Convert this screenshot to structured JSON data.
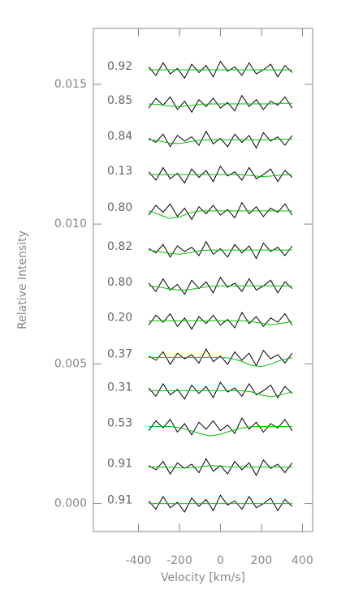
{
  "chart_data": {
    "type": "line",
    "xlabel": "Velocity [km/s]",
    "ylabel": "Relative Intensity",
    "xlim": [
      -620,
      450
    ],
    "ylim": [
      -0.001,
      0.017
    ],
    "xticks": [
      -400,
      -200,
      0,
      200,
      400
    ],
    "yticks": [
      {
        "value": 0,
        "label": "0.000"
      },
      {
        "value": 0.005,
        "label": "0.005"
      },
      {
        "value": 0.01,
        "label": "0.010"
      },
      {
        "value": 0.015,
        "label": "0.015"
      }
    ],
    "line_color": "#000000",
    "model_color": "#00c000",
    "x": [
      -350,
      -315,
      -280,
      -245,
      -210,
      -175,
      -140,
      -105,
      -70,
      -35,
      0,
      35,
      70,
      105,
      140,
      175,
      210,
      245,
      280,
      315,
      350
    ],
    "model_x": [
      -350,
      -300,
      -250,
      -200,
      -150,
      -100,
      -50,
      0,
      50,
      100,
      150,
      200,
      250,
      300,
      350
    ],
    "series": [
      {
        "label": "0.92",
        "values": [
          0.01562,
          0.01532,
          0.01577,
          0.01537,
          0.01557,
          0.01522,
          0.01572,
          0.01542,
          0.01567,
          0.01527,
          0.01582,
          0.01547,
          0.01562,
          0.01532,
          0.01577,
          0.01537,
          0.01552,
          0.01572,
          0.01527,
          0.01567,
          0.01542
        ],
        "model": [
          0.01552,
          0.01552,
          0.01552,
          0.01552,
          0.01552,
          0.01552,
          0.01552,
          0.01552,
          0.01552,
          0.01552,
          0.01552,
          0.01552,
          0.01552,
          0.01552,
          0.01552
        ]
      },
      {
        "label": "0.85",
        "values": [
          0.01415,
          0.0145,
          0.01425,
          0.01455,
          0.0141,
          0.0144,
          0.014,
          0.01445,
          0.0142,
          0.0145,
          0.01415,
          0.01435,
          0.01405,
          0.0146,
          0.0142,
          0.01445,
          0.0141,
          0.0144,
          0.01425,
          0.01455,
          0.01415
        ],
        "model": [
          0.0143,
          0.01428,
          0.01422,
          0.0142,
          0.01424,
          0.01428,
          0.0143,
          0.0143,
          0.0143,
          0.0143,
          0.0143,
          0.0143,
          0.0143,
          0.01432,
          0.01432
        ]
      },
      {
        "label": "0.84",
        "values": [
          0.01307,
          0.01292,
          0.01322,
          0.01277,
          0.01317,
          0.01297,
          0.01312,
          0.01282,
          0.01332,
          0.01287,
          0.01307,
          0.01277,
          0.01322,
          0.01292,
          0.01317,
          0.01272,
          0.01327,
          0.01297,
          0.01312,
          0.01282,
          0.01317
        ],
        "model": [
          0.01302,
          0.01298,
          0.0129,
          0.01288,
          0.01294,
          0.013,
          0.01302,
          0.01302,
          0.01302,
          0.01302,
          0.01302,
          0.01302,
          0.01302,
          0.01304,
          0.01304
        ]
      },
      {
        "label": "0.13",
        "values": [
          0.01187,
          0.01157,
          0.01202,
          0.01162,
          0.01182,
          0.01147,
          0.01197,
          0.01167,
          0.01192,
          0.01152,
          0.01207,
          0.01172,
          0.01187,
          0.01157,
          0.01202,
          0.01162,
          0.01177,
          0.01197,
          0.01152,
          0.01192,
          0.01167
        ],
        "model": [
          0.01177,
          0.01177,
          0.01177,
          0.01177,
          0.01177,
          0.01177,
          0.01177,
          0.01177,
          0.01177,
          0.01177,
          0.01174,
          0.0117,
          0.01172,
          0.01176,
          0.01177
        ]
      },
      {
        "label": "0.80",
        "values": [
          0.01032,
          0.01067,
          0.01042,
          0.01072,
          0.01027,
          0.01057,
          0.01017,
          0.01062,
          0.01037,
          0.01067,
          0.01032,
          0.01052,
          0.01022,
          0.01077,
          0.01037,
          0.01062,
          0.01027,
          0.01057,
          0.01042,
          0.01072,
          0.01032
        ],
        "model": [
          0.01047,
          0.01035,
          0.0102,
          0.01025,
          0.0104,
          0.01047,
          0.01047,
          0.01047,
          0.01047,
          0.01047,
          0.01047,
          0.01047,
          0.01047,
          0.01047,
          0.01047
        ]
      },
      {
        "label": "0.82",
        "values": [
          0.00912,
          0.00897,
          0.00927,
          0.00882,
          0.00922,
          0.00902,
          0.00917,
          0.00887,
          0.00937,
          0.00892,
          0.00912,
          0.00882,
          0.00927,
          0.00897,
          0.00922,
          0.00877,
          0.00932,
          0.00902,
          0.00917,
          0.00887,
          0.00922
        ],
        "model": [
          0.00907,
          0.00902,
          0.00895,
          0.00892,
          0.00898,
          0.00905,
          0.00907,
          0.00907,
          0.00907,
          0.00907,
          0.00907,
          0.00907,
          0.00907,
          0.00907,
          0.00907
        ]
      },
      {
        "label": "0.80",
        "values": [
          0.00789,
          0.00759,
          0.00804,
          0.00764,
          0.00784,
          0.00749,
          0.00799,
          0.00769,
          0.00794,
          0.00754,
          0.00809,
          0.00774,
          0.00789,
          0.00759,
          0.00804,
          0.00764,
          0.00779,
          0.00799,
          0.00754,
          0.00794,
          0.00769
        ],
        "model": [
          0.00779,
          0.00775,
          0.00768,
          0.00764,
          0.00766,
          0.00772,
          0.00777,
          0.00779,
          0.00779,
          0.00779,
          0.00779,
          0.00779,
          0.00779,
          0.00779,
          0.00779
        ]
      },
      {
        "label": "0.20",
        "values": [
          0.00639,
          0.00674,
          0.00649,
          0.00679,
          0.00634,
          0.00664,
          0.00624,
          0.00669,
          0.00644,
          0.00674,
          0.00639,
          0.00659,
          0.00629,
          0.00684,
          0.00644,
          0.00669,
          0.00634,
          0.00664,
          0.00649,
          0.00679,
          0.00639
        ],
        "model": [
          0.00654,
          0.00654,
          0.00654,
          0.00654,
          0.00654,
          0.00654,
          0.00654,
          0.00654,
          0.00654,
          0.00654,
          0.00652,
          0.00645,
          0.0064,
          0.00645,
          0.00652
        ]
      },
      {
        "label": "0.37",
        "values": [
          0.00528,
          0.00513,
          0.00543,
          0.00498,
          0.00538,
          0.00518,
          0.00533,
          0.00503,
          0.00553,
          0.00508,
          0.00528,
          0.00498,
          0.00543,
          0.00513,
          0.00538,
          0.00493,
          0.00548,
          0.00518,
          0.00533,
          0.00503,
          0.00538
        ],
        "model": [
          0.00523,
          0.00523,
          0.00523,
          0.00523,
          0.00523,
          0.00523,
          0.00523,
          0.00523,
          0.0052,
          0.0051,
          0.00495,
          0.0049,
          0.005,
          0.00515,
          0.00522
        ]
      },
      {
        "label": "0.31",
        "values": [
          0.00414,
          0.00384,
          0.00429,
          0.00389,
          0.00409,
          0.00374,
          0.00424,
          0.00394,
          0.00419,
          0.00379,
          0.00434,
          0.00399,
          0.00414,
          0.00384,
          0.00429,
          0.00389,
          0.00404,
          0.00424,
          0.00379,
          0.00419,
          0.00394
        ],
        "model": [
          0.00404,
          0.00404,
          0.00404,
          0.00404,
          0.00404,
          0.00404,
          0.00404,
          0.00404,
          0.00404,
          0.00404,
          0.004,
          0.00388,
          0.00382,
          0.0039,
          0.004
        ]
      },
      {
        "label": "0.53",
        "values": [
          0.00261,
          0.00296,
          0.00271,
          0.00301,
          0.00256,
          0.00286,
          0.00246,
          0.00291,
          0.00266,
          0.00296,
          0.00261,
          0.00281,
          0.00251,
          0.00306,
          0.00266,
          0.00291,
          0.00256,
          0.00286,
          0.00271,
          0.00301,
          0.00261
        ],
        "model": [
          0.00276,
          0.00276,
          0.00276,
          0.00272,
          0.00262,
          0.0025,
          0.00242,
          0.00248,
          0.0026,
          0.0027,
          0.00275,
          0.00276,
          0.00276,
          0.00276,
          0.00276
        ]
      },
      {
        "label": "0.91",
        "values": [
          0.00136,
          0.00121,
          0.00151,
          0.00106,
          0.00146,
          0.00126,
          0.00141,
          0.00111,
          0.00161,
          0.00116,
          0.00136,
          0.00106,
          0.00151,
          0.00121,
          0.00146,
          0.00101,
          0.00156,
          0.00126,
          0.00141,
          0.00111,
          0.00146
        ],
        "model": [
          0.00131,
          0.00131,
          0.0013,
          0.00128,
          0.00128,
          0.00132,
          0.00136,
          0.00134,
          0.00131,
          0.00131,
          0.00131,
          0.00131,
          0.00131,
          0.00131,
          0.00131
        ]
      },
      {
        "label": "0.91",
        "values": [
          0.0001,
          -0.0002,
          0.00025,
          -0.00015,
          5e-05,
          -0.0003,
          0.0002,
          -0.0001,
          0.00015,
          -0.00025,
          0.0003,
          -5e-05,
          0.0001,
          -0.0002,
          0.00025,
          -0.00015,
          0,
          0.0002,
          -0.00025,
          0.00015,
          -0.0001
        ],
        "model": [
          0,
          0,
          0,
          0,
          0,
          0,
          0,
          0,
          0,
          0,
          0,
          0,
          0,
          0,
          0
        ]
      }
    ]
  }
}
